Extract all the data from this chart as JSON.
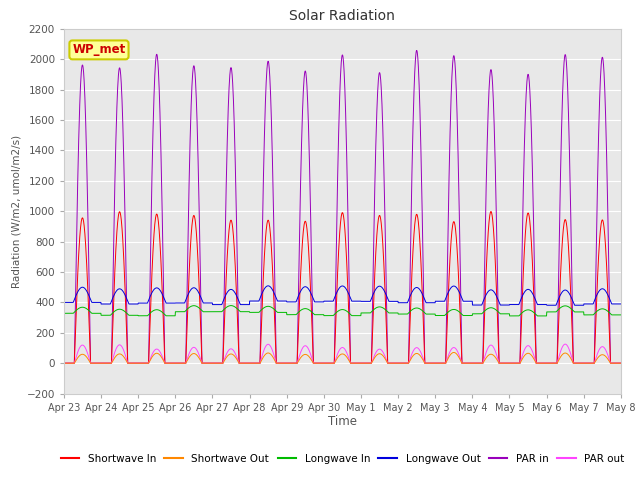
{
  "title": "Solar Radiation",
  "xlabel": "Time",
  "ylabel": "Radiation (W/m2, umol/m2/s)",
  "ylim": [
    -200,
    2200
  ],
  "fig_bg_color": "#ffffff",
  "plot_bg_color": "#e8e8e8",
  "x_labels": [
    "Apr 23",
    "Apr 24",
    "Apr 25",
    "Apr 26",
    "Apr 27",
    "Apr 28",
    "Apr 29",
    "Apr 30",
    "May 1",
    "May 2",
    "May 3",
    "May 4",
    "May 5",
    "May 6",
    "May 7",
    "May 8"
  ],
  "num_days": 15,
  "points_per_day": 144,
  "legend_entries": [
    "Shortwave In",
    "Shortwave Out",
    "Longwave In",
    "Longwave Out",
    "PAR in",
    "PAR out"
  ],
  "legend_colors": [
    "#ff0000",
    "#ff8800",
    "#00cc00",
    "#0000dd",
    "#8800bb",
    "#ff44ff"
  ],
  "annotation_text": "WP_met",
  "annotation_color": "#cc0000",
  "annotation_bg": "#ffff99",
  "annotation_edge": "#cccc00"
}
